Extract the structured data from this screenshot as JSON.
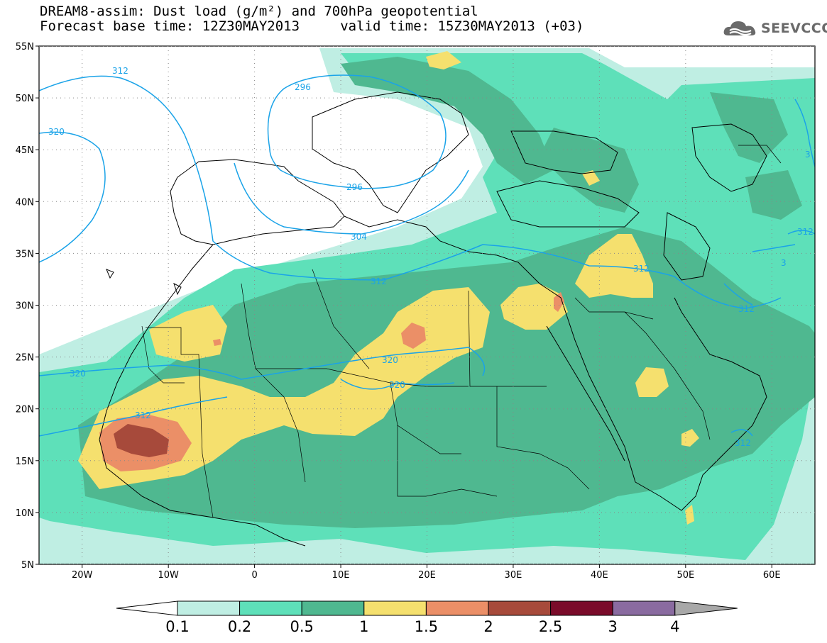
{
  "title_line1": "DREAM8-assim: Dust load (g/m²) and 700hPa geopotential",
  "title_line2": "Forecast base time: 12Z30MAY2013     valid time: 15Z30MAY2013 (+03)",
  "logo": {
    "text": "SEEVCCC",
    "icon": "cloud-logo-icon"
  },
  "map": {
    "lon_range": [
      -25,
      65
    ],
    "lat_range": [
      5,
      55
    ],
    "lon_ticks": [
      "20W",
      "10W",
      "0",
      "10E",
      "20E",
      "30E",
      "40E",
      "50E",
      "60E"
    ],
    "lat_ticks": [
      "55N",
      "50N",
      "45N",
      "40N",
      "35N",
      "30N",
      "25N",
      "20N",
      "15N",
      "10N",
      "5N"
    ],
    "contour_labels": [
      "312",
      "296",
      "320",
      "296",
      "304",
      "312",
      "320",
      "320",
      "320",
      "312",
      "312",
      "312",
      "312",
      "312",
      "3",
      "3"
    ],
    "colors": {
      "contour": "#1aa3e8",
      "bins": [
        "#bfeee3",
        "#5ee0b9",
        "#4fb890",
        "#f5e06e",
        "#eb8f67",
        "#a74a3b",
        "#7a0b2a",
        "#8a6ba0"
      ]
    }
  },
  "colorbar": {
    "labels": [
      "0.1",
      "0.2",
      "0.5",
      "1",
      "1.5",
      "2",
      "2.5",
      "3",
      "4"
    ],
    "colors": [
      "#bfeee3",
      "#5ee0b9",
      "#4fb890",
      "#f5e06e",
      "#eb8f67",
      "#a74a3b",
      "#7a0b2a",
      "#8a6ba0"
    ],
    "under_color": "#ffffff",
    "over_color": "#a8a8a8"
  }
}
